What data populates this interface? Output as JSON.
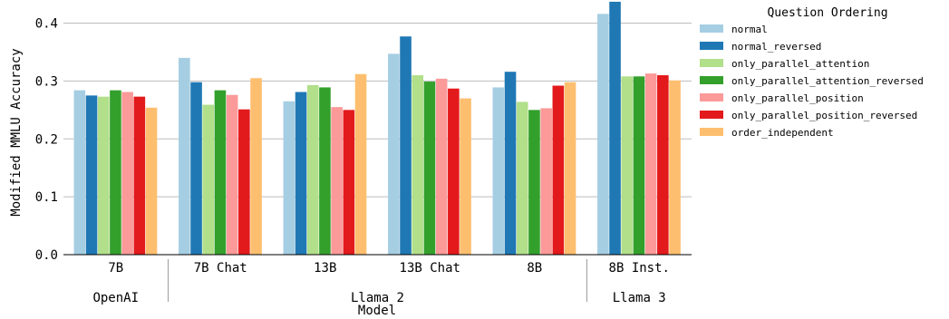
{
  "chart_data": {
    "type": "bar",
    "title": "",
    "xlabel": "Model",
    "ylabel": "Modified MMLU Accuracy",
    "ylim": [
      0,
      0.44
    ],
    "yticks": [
      0.0,
      0.1,
      0.2,
      0.3,
      0.4
    ],
    "ytick_labels": [
      "0.0",
      "0.1",
      "0.2",
      "0.3",
      "0.4"
    ],
    "grid": "horizontal",
    "categories": [
      "7B",
      "7B Chat",
      "13B",
      "13B Chat",
      "8B",
      "8B Inst."
    ],
    "groups": [
      {
        "label": "OpenAI",
        "categories": [
          "7B"
        ]
      },
      {
        "label": "Llama 2",
        "categories": [
          "7B Chat",
          "13B",
          "13B Chat",
          "8B"
        ]
      },
      {
        "label": "Llama 3",
        "categories": [
          "8B Inst."
        ]
      }
    ],
    "legend": {
      "title": "Question Ordering",
      "placement": "right"
    },
    "series": [
      {
        "name": "normal",
        "color": "#a6cee3",
        "values": [
          0.284,
          0.34,
          0.265,
          0.347,
          0.289,
          0.416
        ]
      },
      {
        "name": "normal_reversed",
        "color": "#1f78b4",
        "values": [
          0.275,
          0.298,
          0.281,
          0.377,
          0.316,
          0.437
        ]
      },
      {
        "name": "only_parallel_attention",
        "color": "#b2df8a",
        "values": [
          0.273,
          0.259,
          0.293,
          0.31,
          0.264,
          0.308
        ]
      },
      {
        "name": "only_parallel_attention_reversed",
        "color": "#33a02c",
        "values": [
          0.284,
          0.284,
          0.289,
          0.299,
          0.25,
          0.308
        ]
      },
      {
        "name": "only_parallel_position",
        "color": "#fb9a99",
        "values": [
          0.281,
          0.276,
          0.255,
          0.304,
          0.253,
          0.313
        ]
      },
      {
        "name": "only_parallel_position_reversed",
        "color": "#e31a1c",
        "values": [
          0.273,
          0.251,
          0.25,
          0.287,
          0.292,
          0.31
        ]
      },
      {
        "name": "order_independent",
        "color": "#fdbf6f",
        "values": [
          0.254,
          0.305,
          0.312,
          0.27,
          0.298,
          0.301
        ]
      }
    ]
  }
}
